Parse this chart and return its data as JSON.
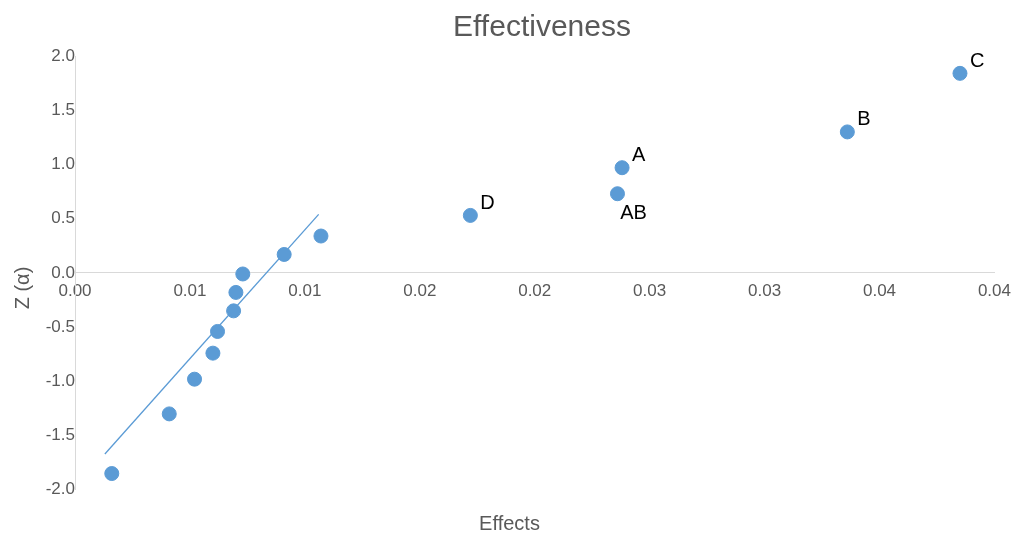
{
  "chart_data": {
    "type": "scatter",
    "title": "Effectiveness",
    "xlabel": "Effects",
    "ylabel": "Z (α)",
    "series": [
      {
        "type": "scatter",
        "color": "#5b9bd5",
        "x": [
          0.0016,
          0.0041,
          0.0052,
          0.006,
          0.0062,
          0.0069,
          0.007,
          0.0073,
          0.0091,
          0.0107,
          0.0172,
          0.0236,
          0.0238,
          0.0336,
          0.0385
        ],
        "values": [
          -1.85,
          -1.3,
          -0.98,
          -0.74,
          -0.54,
          -0.35,
          -0.18,
          -0.01,
          0.17,
          0.34,
          0.53,
          0.73,
          0.97,
          1.3,
          1.84
        ]
      },
      {
        "type": "line",
        "color": "#5b9bd5",
        "x": [
          0.0013,
          0.0106
        ],
        "values": [
          -1.67,
          0.54
        ],
        "marker": "none"
      }
    ],
    "annotations": [
      {
        "text": "D",
        "x": 0.0172,
        "y": 0.53
      },
      {
        "text": "AB",
        "x": 0.0236,
        "y": 0.73
      },
      {
        "text": "A",
        "x": 0.0238,
        "y": 0.97
      },
      {
        "text": "B",
        "x": 0.0336,
        "y": 1.3
      },
      {
        "text": "C",
        "x": 0.0385,
        "y": 1.84
      }
    ],
    "xlim": [
      0,
      0.04
    ],
    "ylim": [
      -2,
      2
    ],
    "xticks": [
      {
        "value": 0,
        "label": "0.00"
      },
      {
        "value": 0.005,
        "label": "0.01"
      },
      {
        "value": 0.01,
        "label": "0.01"
      },
      {
        "value": 0.015,
        "label": "0.02"
      },
      {
        "value": 0.02,
        "label": "0.02"
      },
      {
        "value": 0.025,
        "label": "0.03"
      },
      {
        "value": 0.03,
        "label": "0.03"
      },
      {
        "value": 0.035,
        "label": "0.04"
      },
      {
        "value": 0.04,
        "label": "0.04"
      }
    ],
    "yticks": [
      {
        "value": -2,
        "label": "-2.0"
      },
      {
        "value": -1.5,
        "label": "-1.5"
      },
      {
        "value": -1,
        "label": "-1.0"
      },
      {
        "value": -0.5,
        "label": "-0.5"
      },
      {
        "value": 0,
        "label": "0.0"
      },
      {
        "value": 0.5,
        "label": "0.5"
      },
      {
        "value": 1,
        "label": "1.0"
      },
      {
        "value": 1.5,
        "label": "1.5"
      },
      {
        "value": 2,
        "label": "2.0"
      }
    ],
    "grid": false,
    "legend": false,
    "marker": "circle"
  }
}
